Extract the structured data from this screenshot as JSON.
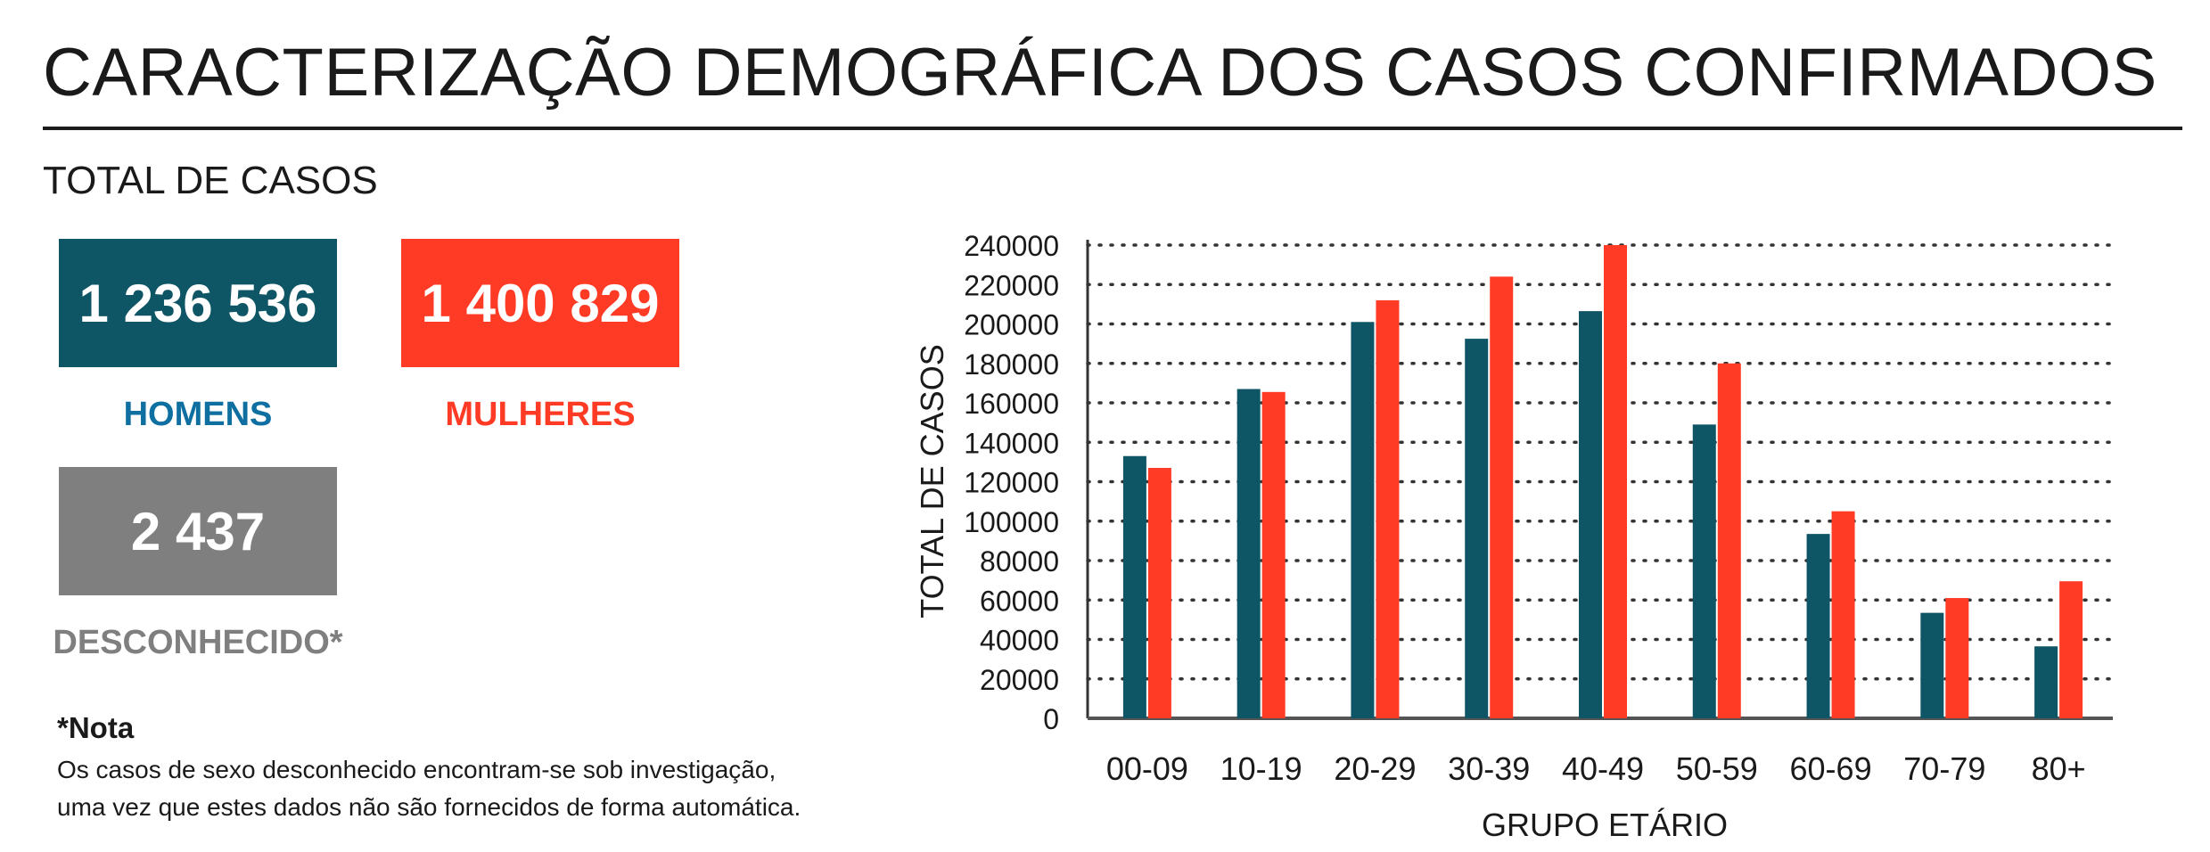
{
  "header": {
    "title": "CARACTERIZAÇÃO DEMOGRÁFICA DOS CASOS CONFIRMADOS",
    "section_title": "TOTAL DE CASOS"
  },
  "stats": {
    "men": {
      "value": "1 236 536",
      "label": "HOMENS",
      "color": "#0e5566",
      "label_color": "#0e6fa0"
    },
    "women": {
      "value": "1 400 829",
      "label": "MULHERES",
      "color": "#ff3b26",
      "label_color": "#ff3b26"
    },
    "unknown": {
      "value": "2 437",
      "label": "DESCONHECIDO*",
      "color": "#7f7f7f",
      "label_color": "#7f7f7f"
    }
  },
  "note": {
    "title": "*Nota",
    "line1": "Os casos de sexo desconhecido encontram-se sob investigação,",
    "line2": "uma vez que estes dados não são fornecidos de forma automática."
  },
  "chart_data": {
    "type": "bar",
    "categories": [
      "00-09",
      "10-19",
      "20-29",
      "30-39",
      "40-49",
      "50-59",
      "60-69",
      "70-79",
      "80+"
    ],
    "series": [
      {
        "values": [
          133000,
          167000,
          201000,
          192500,
          206500,
          149000,
          93500,
          53500,
          36500
        ],
        "color": "#0e5566"
      },
      {
        "values": [
          127000,
          165500,
          212000,
          224000,
          240000,
          180000,
          105000,
          61000,
          69500
        ],
        "color": "#ff3b26"
      }
    ],
    "xlabel": "GRUPO ETÁRIO",
    "ylabel": "TOTAL DE CASOS",
    "ylim": [
      0,
      240000
    ],
    "yticks": [
      "0",
      "20000",
      "40000",
      "60000",
      "80000",
      "100000",
      "120000",
      "140000",
      "160000",
      "180000",
      "200000",
      "220000",
      "240000"
    ],
    "grid": "dotted horizontal",
    "legend": "none"
  }
}
